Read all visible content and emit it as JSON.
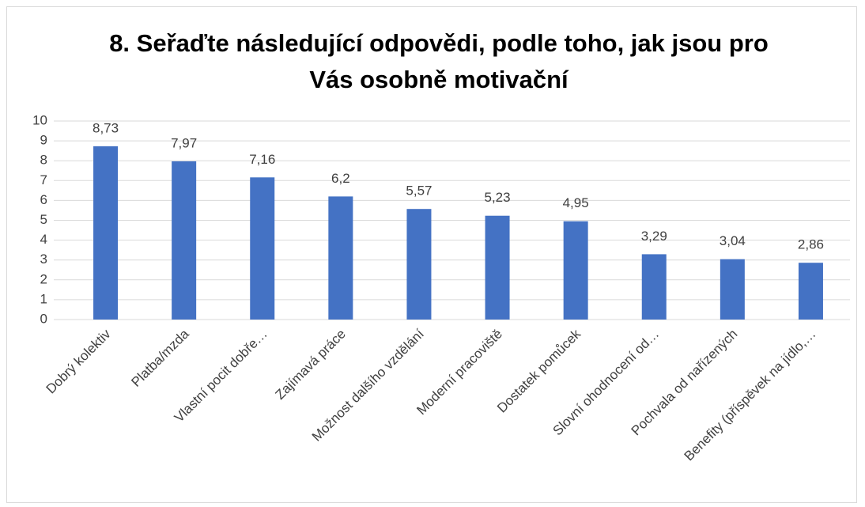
{
  "chart_data": {
    "type": "bar",
    "title": "8. Seřaďte následující odpovědi, podle toho, jak jsou pro Vás osobně motivační",
    "categories": [
      "Dobrý kolektiv",
      "Platba/mzda",
      "Vlastní pocit dobře…",
      "Zajímavá práce",
      "Možnost dalšího vzdělání",
      "Moderní pracoviště",
      "Dostatek pomůcek",
      "Slovní ohodnocení od…",
      "Pochvala od nařízených",
      "Benefity (příspěvek na jídlo,…"
    ],
    "values": [
      8.73,
      7.97,
      7.16,
      6.2,
      5.57,
      5.23,
      4.95,
      3.29,
      3.04,
      2.86
    ],
    "value_labels": [
      "8,73",
      "7,97",
      "7,16",
      "6,2",
      "5,57",
      "5,23",
      "4,95",
      "3,29",
      "3,04",
      "2,86"
    ],
    "color": "#4472c4",
    "ylim": [
      0,
      10
    ],
    "yticks": [
      0,
      1,
      2,
      3,
      4,
      5,
      6,
      7,
      8,
      9,
      10
    ],
    "grid": true
  }
}
